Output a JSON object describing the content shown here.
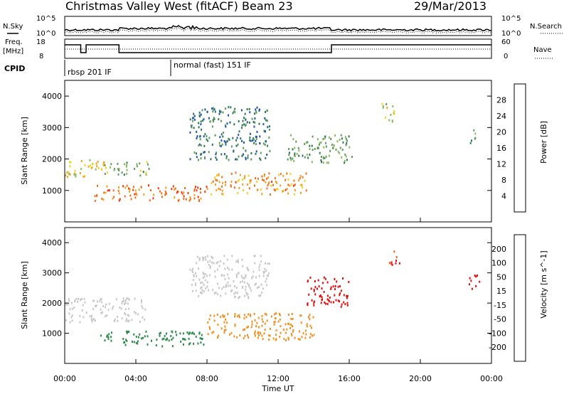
{
  "header": {
    "title": "Christmas Valley West (fitACF)",
    "beam": "Beam 23",
    "date": "29/Mar/2013"
  },
  "chart_data": [
    {
      "type": "line",
      "panel": "noise",
      "left_label": "N.Sky",
      "right_label": "N.Search",
      "left_ticks": [
        "10^5",
        "10^0"
      ],
      "right_ticks": [
        "10^5",
        "10^0"
      ]
    },
    {
      "type": "line",
      "panel": "frequency",
      "left_label": "Freq.",
      "left_unit": "[MHz]",
      "right_label": "Nave",
      "left_ticks": [
        18,
        8
      ],
      "right_ticks": [
        60,
        0
      ],
      "freq_segments": [
        {
          "x0": 0.0,
          "x1": 0.9,
          "level": "high"
        },
        {
          "x0": 0.9,
          "x1": 1.2,
          "level": "low"
        },
        {
          "x0": 1.2,
          "x1": 3.05,
          "level": "high"
        },
        {
          "x0": 3.05,
          "x1": 15.0,
          "level": "low"
        },
        {
          "x0": 15.0,
          "x1": 24.0,
          "level": "high"
        }
      ]
    },
    {
      "type": "table",
      "panel": "cpid",
      "label": "CPID",
      "modes": [
        {
          "start": 0.0,
          "text": "rbsp 201 IF"
        },
        {
          "start": 5.95,
          "text": "normal (fast) 151 IF"
        }
      ]
    },
    {
      "type": "heatmap",
      "panel": "power",
      "ylabel": "Slant Range [km]",
      "xlabel": "",
      "xlim": [
        0,
        24
      ],
      "ylim": [
        0,
        4500
      ],
      "yticks": [
        1000,
        2000,
        3000,
        4000
      ],
      "colorbar": {
        "label": "Power [dB]",
        "ticks": [
          4,
          8,
          12,
          16,
          20,
          24,
          28
        ],
        "colors": [
          "#1c25e0",
          "#1f56a6",
          "#2e7a52",
          "#5e9a5e",
          "#88bb60",
          "#f0d020",
          "#f0a020",
          "#f07020",
          "#ee3a10",
          "#e01010"
        ]
      },
      "echoes": [
        {
          "t0": 0.0,
          "t1": 2.2,
          "r0": 1450,
          "r1": 2050,
          "value": 18
        },
        {
          "t0": 2.2,
          "t1": 4.8,
          "r0": 1500,
          "r1": 1950,
          "value": 13
        },
        {
          "t0": 1.6,
          "t1": 8.0,
          "r0": 700,
          "r1": 1200,
          "value": 24
        },
        {
          "t0": 8.2,
          "t1": 13.7,
          "r0": 900,
          "r1": 1600,
          "value": 22
        },
        {
          "t0": 7.0,
          "t1": 11.5,
          "r0": 2000,
          "r1": 3700,
          "value": 8
        },
        {
          "t0": 12.5,
          "t1": 16.2,
          "r0": 1900,
          "r1": 2800,
          "value": 12
        },
        {
          "t0": 17.8,
          "t1": 18.6,
          "r0": 3200,
          "r1": 3800,
          "value": 16
        },
        {
          "t0": 22.7,
          "t1": 23.2,
          "r0": 2500,
          "r1": 2950,
          "value": 10
        }
      ]
    },
    {
      "type": "heatmap",
      "panel": "velocity",
      "ylabel": "Slant Range [km]",
      "xlabel": "Time UT",
      "xlim": [
        0,
        24
      ],
      "ylim": [
        0,
        4500
      ],
      "yticks": [
        1000,
        2000,
        3000,
        4000
      ],
      "xticks": [
        "00:00",
        "04:00",
        "08:00",
        "12:00",
        "16:00",
        "20:00",
        "00:00"
      ],
      "colorbar": {
        "label": "Velocity [m s^-1]",
        "ticks": [
          200,
          100,
          50,
          15,
          -15,
          -50,
          -100,
          -200
        ],
        "colors": [
          "#1a2bd6",
          "#2f6ab4",
          "#2e8a4e",
          "#58bb3c",
          "#c8c8c8",
          "#f0b030",
          "#f09020",
          "#f06020",
          "#e01010"
        ]
      },
      "echoes": [
        {
          "t0": 0.0,
          "t1": 4.5,
          "r0": 1400,
          "r1": 2200,
          "value": 0
        },
        {
          "t0": 1.8,
          "t1": 7.8,
          "r0": 600,
          "r1": 1100,
          "value": 40
        },
        {
          "t0": 8.0,
          "t1": 14.0,
          "r0": 800,
          "r1": 1700,
          "value": -60
        },
        {
          "t0": 7.0,
          "t1": 11.5,
          "r0": 2200,
          "r1": 3600,
          "value": 5
        },
        {
          "t0": 13.5,
          "t1": 16.0,
          "r0": 1900,
          "r1": 2900,
          "value": -200
        },
        {
          "t0": 18.2,
          "t1": 18.8,
          "r0": 3300,
          "r1": 3800,
          "value": -150
        },
        {
          "t0": 22.6,
          "t1": 23.3,
          "r0": 2500,
          "r1": 2950,
          "value": -180
        }
      ]
    }
  ]
}
